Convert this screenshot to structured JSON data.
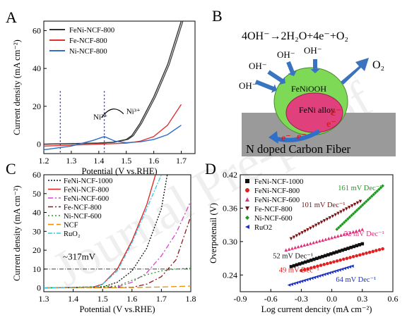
{
  "panels": {
    "A": {
      "letter": "A"
    },
    "B": {
      "letter": "B"
    },
    "C": {
      "letter": "C"
    },
    "D": {
      "letter": "D"
    }
  },
  "watermark": "Journal Pre-proof",
  "schematic": {
    "equation": "4OH⁻→2H₂O+4e⁻+O₂",
    "oh_labels": [
      "OH⁻",
      "OH⁻",
      "OH⁻",
      "OH⁻"
    ],
    "o2_label": "O₂",
    "outer_label": "FeNiOOH",
    "inner_label": "FeNi alloy",
    "electron": "e⁻",
    "substrate_label": "N doped Carbon Fiber",
    "colors": {
      "outer": "#7ed957",
      "inner": "#e0417c",
      "substrate": "#9a9a9a",
      "arrow": "#3a73c0",
      "electron": "#d62020"
    }
  },
  "chart_data": [
    {
      "panel": "A",
      "type": "line",
      "xlabel": "Potential (V vs.RHE)",
      "ylabel": "Current density (mA cm⁻²)",
      "xlim": [
        1.2,
        1.75
      ],
      "ylim": [
        -5,
        65
      ],
      "xticks": [
        1.2,
        1.3,
        1.4,
        1.5,
        1.6,
        1.7
      ],
      "yticks": [
        0,
        20,
        40,
        60
      ],
      "legend_position": "top-left",
      "annotations": [
        {
          "text": "Ni²⁺",
          "at": [
            1.38,
            13
          ]
        },
        {
          "text": "Ni³⁺",
          "at": [
            1.5,
            16
          ]
        }
      ],
      "vlines": [
        1.26,
        1.42
      ],
      "series": [
        {
          "name": "FeNi-NCF-800",
          "color": "#333333",
          "x": [
            1.2,
            1.3,
            1.4,
            1.45,
            1.5,
            1.52,
            1.55,
            1.6,
            1.65,
            1.7
          ],
          "y": [
            0,
            0.3,
            0.6,
            1,
            2.5,
            4.5,
            11,
            25,
            42,
            65
          ]
        },
        {
          "name": "Fe-NCF-800",
          "color": "#e03030",
          "x": [
            1.2,
            1.3,
            1.4,
            1.5,
            1.55,
            1.6,
            1.65,
            1.7
          ],
          "y": [
            -1,
            -0.5,
            0,
            0.5,
            1.5,
            4,
            10,
            21
          ]
        },
        {
          "name": "Ni-NCF-800",
          "color": "#2f6fc9",
          "x": [
            1.2,
            1.3,
            1.38,
            1.42,
            1.46,
            1.5,
            1.55,
            1.6,
            1.65,
            1.7
          ],
          "y": [
            -3,
            -1,
            2,
            4,
            1.5,
            0.8,
            1.2,
            2.5,
            5,
            10
          ]
        }
      ]
    },
    {
      "panel": "C",
      "type": "line",
      "xlabel": "Potential (V vs.RHE)",
      "ylabel": "Current density (mA cm⁻²)",
      "xlim": [
        1.3,
        1.8
      ],
      "ylim": [
        -2,
        60
      ],
      "xticks": [
        1.3,
        1.4,
        1.5,
        1.6,
        1.7,
        1.8
      ],
      "yticks": [
        0,
        10,
        20,
        30,
        40,
        50,
        60
      ],
      "legend_position": "top-left",
      "hline": 10,
      "annotations": [
        {
          "text": "~317mV",
          "at": [
            1.365,
            15
          ]
        }
      ],
      "series": [
        {
          "name": "FeNi-NCF-1000",
          "color": "#111111",
          "dash": "2,2",
          "x": [
            1.3,
            1.5,
            1.55,
            1.6,
            1.65,
            1.7,
            1.72
          ],
          "y": [
            0,
            0.5,
            3,
            9,
            21,
            42,
            60
          ]
        },
        {
          "name": "FeNi-NCF-800",
          "color": "#e02020",
          "dash": "",
          "x": [
            1.3,
            1.47,
            1.5,
            1.55,
            1.6,
            1.65,
            1.68
          ],
          "y": [
            0,
            0.5,
            2,
            10,
            25,
            44,
            60
          ]
        },
        {
          "name": "FeNi-NCF-600",
          "color": "#e040d0",
          "dash": "7,3,2,3",
          "x": [
            1.3,
            1.55,
            1.6,
            1.65,
            1.7,
            1.75,
            1.8
          ],
          "y": [
            0,
            0.5,
            3,
            8,
            17,
            29,
            46
          ]
        },
        {
          "name": "Fe-NCF-800",
          "color": "#8b1a1a",
          "dash": "7,3,2,3",
          "x": [
            1.3,
            1.6,
            1.65,
            1.7,
            1.75,
            1.8
          ],
          "y": [
            0,
            0.3,
            2,
            6,
            15,
            38
          ]
        },
        {
          "name": "Ni-NCF-600",
          "color": "#2a9a2a",
          "dash": "2,3",
          "x": [
            1.3,
            1.55,
            1.6,
            1.65,
            1.7,
            1.75,
            1.8
          ],
          "y": [
            0,
            1,
            4,
            7,
            9,
            10,
            10.5
          ]
        },
        {
          "name": "NCF",
          "color": "#f08a00",
          "dash": "8,4",
          "x": [
            1.3,
            1.6,
            1.7,
            1.8
          ],
          "y": [
            0,
            0.2,
            0.5,
            1
          ]
        },
        {
          "name": "RuO₂",
          "color": "#33c8e8",
          "dash": "6,2,2,2",
          "x": [
            1.3,
            1.48,
            1.5,
            1.55,
            1.6,
            1.65,
            1.7
          ],
          "y": [
            0,
            0.5,
            2,
            9,
            24,
            42,
            60
          ]
        }
      ]
    },
    {
      "panel": "D",
      "type": "scatter",
      "xlabel": "Log current dencity (mA cm⁻²)",
      "ylabel": "Overpotenail (V)",
      "xlim": [
        -0.9,
        0.6
      ],
      "ylim": [
        0.21,
        0.42
      ],
      "xticks": [
        -0.9,
        -0.6,
        -0.3,
        0.0,
        0.3,
        0.6
      ],
      "yticks": [
        0.24,
        0.3,
        0.36,
        0.42
      ],
      "legend_position": "top-left",
      "series": [
        {
          "name": "FeNi-NCF-1000",
          "color": "#111111",
          "marker": "square",
          "x0": -0.4,
          "y0": 0.255,
          "x1": 0.3,
          "y1": 0.296,
          "slope_label": "52 mV Dec⁻¹",
          "label_at": [
            -0.58,
            0.27
          ]
        },
        {
          "name": "FeNi-NCF-800",
          "color": "#e02020",
          "marker": "circle",
          "x0": -0.3,
          "y0": 0.248,
          "x1": 0.5,
          "y1": 0.287,
          "slope_label": "49 mV Dec⁻¹",
          "label_at": [
            -0.52,
            0.245
          ]
        },
        {
          "name": "FeNi-NCF-600",
          "color": "#e0307a",
          "marker": "triangle",
          "x0": -0.45,
          "y0": 0.285,
          "x1": 0.3,
          "y1": 0.322,
          "slope_label": "52 mV Dec⁻¹",
          "label_at": [
            0.12,
            0.31
          ]
        },
        {
          "name": "Fe-NCF-800",
          "color": "#7a1010",
          "marker": "triangle-down",
          "x0": -0.4,
          "y0": 0.305,
          "x1": 0.28,
          "y1": 0.372,
          "slope_label": "101 mV Dec⁻¹",
          "label_at": [
            -0.3,
            0.362
          ]
        },
        {
          "name": "Ni-NCF-600",
          "color": "#1a9a1a",
          "marker": "diamond",
          "x0": 0.05,
          "y0": 0.322,
          "x1": 0.5,
          "y1": 0.4,
          "slope_label": "161 mV Dec⁻¹",
          "label_at": [
            0.06,
            0.392
          ]
        },
        {
          "name": "RuO2",
          "color": "#2030c0",
          "marker": "triangle-left",
          "x0": -0.42,
          "y0": 0.222,
          "x1": 0.2,
          "y1": 0.256,
          "slope_label": "64 mV Dec⁻¹",
          "label_at": [
            0.04,
            0.228
          ]
        }
      ]
    }
  ]
}
